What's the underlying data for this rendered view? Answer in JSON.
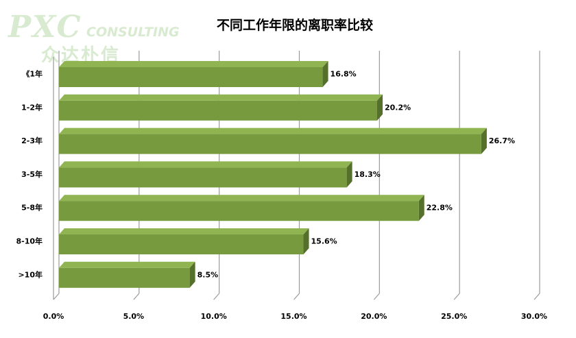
{
  "logo": {
    "brand": "PXC",
    "tagline": "CONSULTING",
    "chinese": "众达朴信"
  },
  "colors": {
    "bar_front": "#779a3e",
    "bar_top": "#90b452",
    "bar_side": "#55702a",
    "grid": "#9a9a9a",
    "logo": "#d8ead0"
  },
  "chart_data": {
    "type": "bar",
    "orientation": "horizontal",
    "title": "不同工作年限的离职率比较",
    "categories": [
      "《1年",
      "1-2年",
      "2-3年",
      "3-5年",
      "5-8年",
      "8-10年",
      ">10年"
    ],
    "values": [
      16.8,
      20.2,
      26.7,
      18.3,
      22.8,
      15.6,
      8.5
    ],
    "data_labels": [
      "16.8%",
      "20.2%",
      "26.7%",
      "18.3%",
      "22.8%",
      "15.6%",
      "8.5%"
    ],
    "xlim": [
      0,
      30
    ],
    "xticks": [
      "0.0%",
      "5.0%",
      "10.0%",
      "15.0%",
      "20.0%",
      "25.0%",
      "30.0%"
    ],
    "xlabel": "",
    "ylabel": "",
    "grid": true,
    "legend": "none",
    "style": "3d"
  }
}
